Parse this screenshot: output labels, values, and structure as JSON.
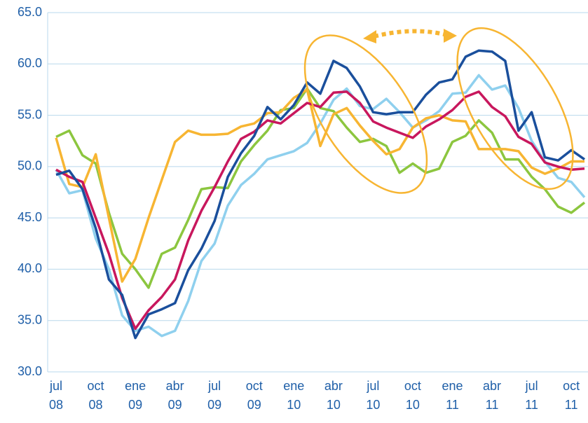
{
  "chart_data": {
    "type": "line",
    "categories": [
      "jul 08",
      null,
      null,
      "oct 08",
      null,
      null,
      "ene 09",
      null,
      null,
      "abr 09",
      null,
      null,
      "jul 09",
      null,
      null,
      "oct 09",
      null,
      null,
      "ene 10",
      null,
      null,
      "abr 10",
      null,
      null,
      "jul 10",
      null,
      null,
      "oct 10",
      null,
      null,
      "ene 11",
      null,
      null,
      "abr 11",
      null,
      null,
      "jul 11",
      null,
      null,
      "oct 11",
      null
    ],
    "series": [
      {
        "color": "#8fd0ee",
        "values": [
          49.7,
          47.4,
          47.7,
          43,
          40,
          35.5,
          34,
          34.4,
          33.5,
          34,
          36.9,
          40.8,
          42.5,
          46.2,
          48.2,
          49.3,
          50.7,
          51.1,
          51.5,
          52.3,
          54.2,
          56.5,
          57.6,
          55.9,
          55.6,
          56.6,
          55.3,
          53.8,
          54.5,
          55.4,
          57.1,
          57.2,
          58.9,
          57.5,
          57.9,
          55.7,
          52.5,
          50.5,
          48.9,
          48.5,
          47
        ]
      },
      {
        "color": "#8cc63f",
        "values": [
          52.9,
          53.5,
          51.1,
          50.3,
          45.5,
          41.5,
          40,
          38.2,
          41.5,
          42.1,
          44.8,
          47.8,
          48,
          47.9,
          50.5,
          52.1,
          53.5,
          55.5,
          55.7,
          57.6,
          55.7,
          55.4,
          53.8,
          52.4,
          52.7,
          52,
          49.4,
          50.3,
          49.4,
          49.8,
          52.4,
          53,
          54.5,
          53.3,
          50.7,
          50.7,
          49,
          47.8,
          46.1,
          45.5,
          46.5
        ]
      },
      {
        "color": "#f7b532",
        "values": [
          52.8,
          48.3,
          48,
          51.2,
          45,
          38.8,
          41,
          45,
          48.7,
          52.4,
          53.5,
          53.1,
          53.1,
          53.2,
          53.9,
          54.2,
          55.2,
          55.3,
          56.7,
          57.5,
          52,
          55.1,
          55.7,
          54,
          52.5,
          51.2,
          51.7,
          53.8,
          54.7,
          55,
          54.5,
          54.4,
          51.7,
          51.7,
          51.7,
          51.5,
          49.9,
          49.3,
          49.8,
          50.5,
          50.5
        ]
      },
      {
        "color": "#c8175d",
        "values": [
          49.7,
          49,
          48.5,
          45,
          41.5,
          37.2,
          34.2,
          36,
          37.3,
          39,
          42.8,
          45.7,
          48,
          50.5,
          52.7,
          53.4,
          54.5,
          54.2,
          55.2,
          56.2,
          55.8,
          57.2,
          57.3,
          56.2,
          54.4,
          53.8,
          53.3,
          52.8,
          53.9,
          54.6,
          55.5,
          56.8,
          57.3,
          55.8,
          54.9,
          52.9,
          52.2,
          50.4,
          50,
          49.7,
          49.8
        ]
      },
      {
        "color": "#1a4f9c",
        "values": [
          49.2,
          49.6,
          47.8,
          44,
          39,
          37.5,
          33.3,
          35.6,
          36.1,
          36.7,
          39.9,
          42,
          44.7,
          49,
          51.3,
          53,
          55.8,
          54.6,
          56,
          58.2,
          57.1,
          60.3,
          59.6,
          57.8,
          55.3,
          55.1,
          55.3,
          55.3,
          57,
          58.2,
          58.5,
          60.7,
          61.3,
          61.2,
          60.3,
          53.5,
          55.3,
          50.9,
          50.6,
          51.6,
          50.7
        ]
      }
    ],
    "ylim": [
      30,
      65
    ],
    "yticks": [
      {
        "value": 30,
        "label": "30.0"
      },
      {
        "value": 35,
        "label": "35.0"
      },
      {
        "value": 40,
        "label": "40.0"
      },
      {
        "value": 45,
        "label": "45.0"
      },
      {
        "value": 50,
        "label": "50.0"
      },
      {
        "value": 55,
        "label": "55.0"
      },
      {
        "value": 60,
        "label": "60.0"
      },
      {
        "value": 65,
        "label": "65.0"
      }
    ],
    "grid": true
  }
}
